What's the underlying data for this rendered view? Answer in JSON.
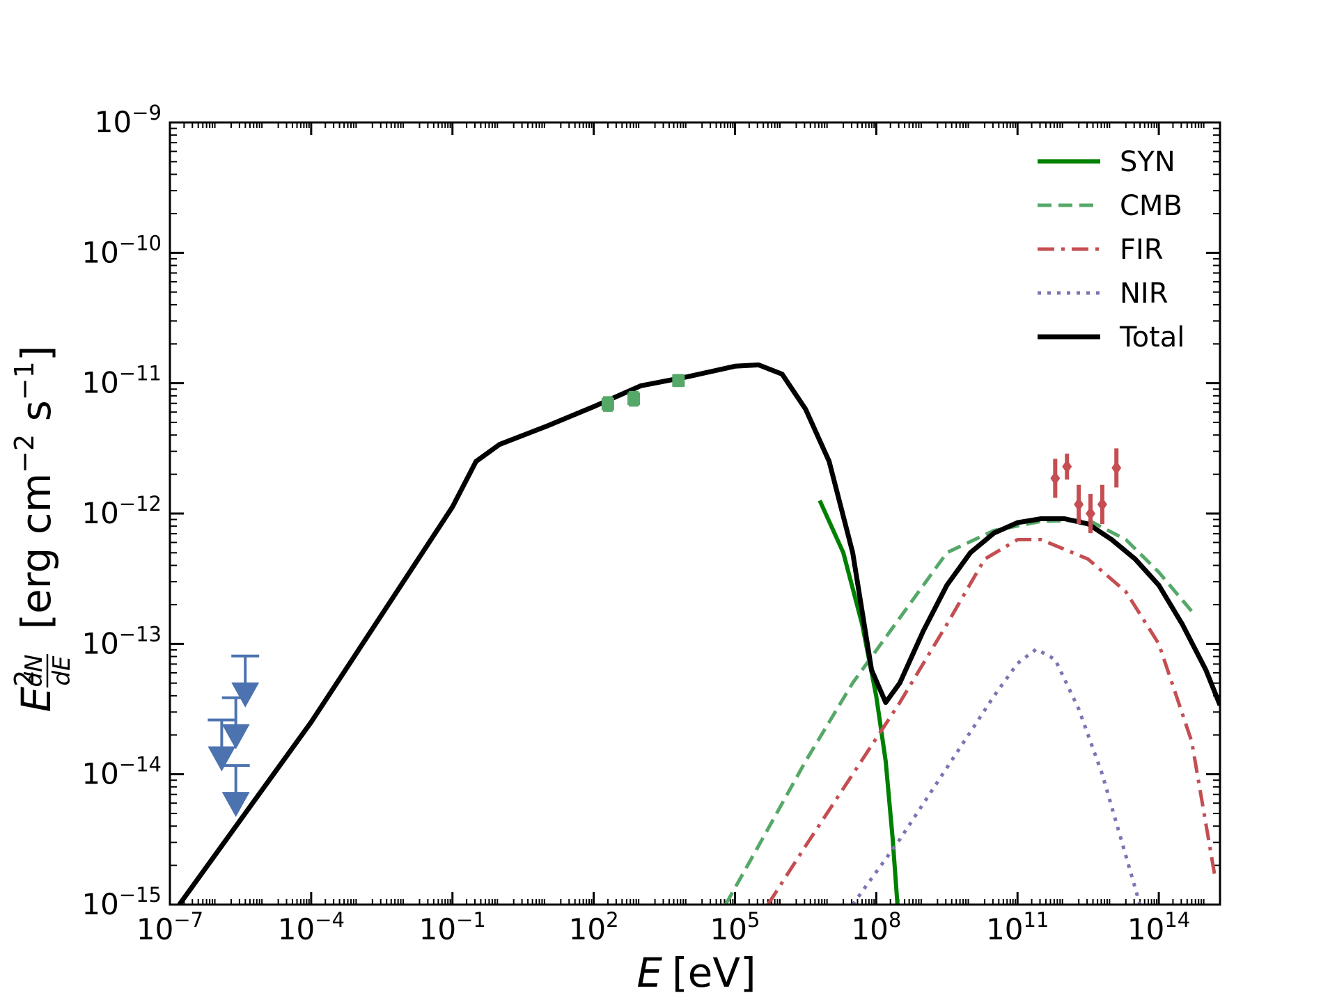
{
  "chart_data": {
    "type": "line",
    "title": "",
    "xlabel": "E [eV]",
    "xlabel_var": "E",
    "xlabel_unit": "[eV]",
    "ylabel": "E^2 dN/dE [erg cm^-2 s^-1]",
    "ylabel_parts": {
      "base": "E",
      "exp": "2",
      "num": "dN",
      "den": "dE",
      "unit_prefix": "[erg cm",
      "unit_exp1": "−2",
      "unit_mid": " s",
      "unit_exp2": "−1",
      "unit_suffix": "]"
    },
    "x_scale": "log",
    "y_scale": "log",
    "xlim_log10": [
      -7,
      15.3
    ],
    "ylim_log10": [
      -15,
      -9
    ],
    "x_ticks": [
      {
        "base": "10",
        "exp": "−7",
        "log": -7
      },
      {
        "base": "10",
        "exp": "−4",
        "log": -4
      },
      {
        "base": "10",
        "exp": "−1",
        "log": -1
      },
      {
        "base": "10",
        "exp": "2",
        "log": 2
      },
      {
        "base": "10",
        "exp": "5",
        "log": 5
      },
      {
        "base": "10",
        "exp": "8",
        "log": 8
      },
      {
        "base": "10",
        "exp": "11",
        "log": 11
      },
      {
        "base": "10",
        "exp": "14",
        "log": 14
      }
    ],
    "y_ticks": [
      {
        "base": "10",
        "exp": "−9",
        "log": -9
      },
      {
        "base": "10",
        "exp": "−10",
        "log": -10
      },
      {
        "base": "10",
        "exp": "−11",
        "log": -11
      },
      {
        "base": "10",
        "exp": "−12",
        "log": -12
      },
      {
        "base": "10",
        "exp": "−13",
        "log": -13
      },
      {
        "base": "10",
        "exp": "−14",
        "log": -14
      },
      {
        "base": "10",
        "exp": "−15",
        "log": -15
      }
    ],
    "legend_position": "upper-right",
    "series": [
      {
        "name": "SYN",
        "color": "#008000",
        "style": "solid",
        "width": 6,
        "points_log10": [
          [
            6.8,
            -11.9
          ],
          [
            7.3,
            -12.3
          ],
          [
            7.7,
            -12.85
          ],
          [
            8.0,
            -13.4
          ],
          [
            8.2,
            -13.9
          ],
          [
            8.35,
            -14.5
          ],
          [
            8.45,
            -15
          ]
        ]
      },
      {
        "name": "CMB",
        "color": "#55a868",
        "style": "dashed",
        "width": 5,
        "points_log10": [
          [
            4.8,
            -15
          ],
          [
            5.5,
            -14.55
          ],
          [
            6.5,
            -13.9
          ],
          [
            7.5,
            -13.3
          ],
          [
            8.5,
            -12.8
          ],
          [
            9.5,
            -12.3
          ],
          [
            10.5,
            -12.13
          ],
          [
            11.5,
            -12.06
          ],
          [
            12.5,
            -12.05
          ],
          [
            13.3,
            -12.2
          ],
          [
            14,
            -12.45
          ],
          [
            14.7,
            -12.75
          ]
        ]
      },
      {
        "name": "FIR",
        "color": "#c44e52",
        "style": "dashdot",
        "width": 5,
        "points_log10": [
          [
            5.7,
            -15
          ],
          [
            6.5,
            -14.55
          ],
          [
            7.5,
            -14.0
          ],
          [
            8.5,
            -13.45
          ],
          [
            9.5,
            -12.85
          ],
          [
            10.3,
            -12.35
          ],
          [
            11.0,
            -12.2
          ],
          [
            11.5,
            -12.2
          ],
          [
            12.5,
            -12.35
          ],
          [
            13.3,
            -12.6
          ],
          [
            14.0,
            -13.0
          ],
          [
            14.7,
            -13.75
          ],
          [
            15.2,
            -14.8
          ]
        ]
      },
      {
        "name": "NIR",
        "color": "#8172b2",
        "style": "dotted",
        "width": 5,
        "points_log10": [
          [
            7.5,
            -15
          ],
          [
            8.5,
            -14.5
          ],
          [
            9.5,
            -13.95
          ],
          [
            10.5,
            -13.4
          ],
          [
            11.0,
            -13.15
          ],
          [
            11.4,
            -13.04
          ],
          [
            11.8,
            -13.12
          ],
          [
            12.3,
            -13.5
          ],
          [
            12.8,
            -14.0
          ],
          [
            13.2,
            -14.5
          ],
          [
            13.6,
            -15
          ]
        ]
      },
      {
        "name": "Total",
        "color": "#000000",
        "style": "solid",
        "width": 7,
        "points_log10": [
          [
            -6.8,
            -15
          ],
          [
            -6,
            -14.6
          ],
          [
            -5,
            -14.1
          ],
          [
            -4,
            -13.6
          ],
          [
            -3,
            -13.05
          ],
          [
            -2,
            -12.5
          ],
          [
            -1,
            -11.95
          ],
          [
            -0.5,
            -11.6
          ],
          [
            0,
            -11.47
          ],
          [
            1,
            -11.33
          ],
          [
            2,
            -11.18
          ],
          [
            3,
            -11.02
          ],
          [
            4,
            -10.95
          ],
          [
            5,
            -10.87
          ],
          [
            5.5,
            -10.86
          ],
          [
            6,
            -10.93
          ],
          [
            6.5,
            -11.2
          ],
          [
            7.0,
            -11.6
          ],
          [
            7.5,
            -12.3
          ],
          [
            7.9,
            -13.2
          ],
          [
            8.2,
            -13.45
          ],
          [
            8.5,
            -13.3
          ],
          [
            9.0,
            -12.9
          ],
          [
            9.5,
            -12.55
          ],
          [
            10.0,
            -12.3
          ],
          [
            10.5,
            -12.15
          ],
          [
            11.0,
            -12.07
          ],
          [
            11.5,
            -12.04
          ],
          [
            12.0,
            -12.04
          ],
          [
            12.5,
            -12.08
          ],
          [
            13.0,
            -12.2
          ],
          [
            13.5,
            -12.35
          ],
          [
            14.0,
            -12.55
          ],
          [
            14.5,
            -12.85
          ],
          [
            15.0,
            -13.2
          ],
          [
            15.3,
            -13.47
          ]
        ]
      }
    ],
    "data_points": [
      {
        "group": "upper-limits",
        "color": "#4c72b0",
        "kind": "upper_limit",
        "points_log10": [
          [
            -5.9,
            -13.85
          ],
          [
            -5.6,
            -13.68
          ],
          [
            -5.4,
            -13.36
          ],
          [
            -5.6,
            -14.2
          ]
        ]
      },
      {
        "group": "x-ray",
        "color": "#55a868",
        "kind": "point",
        "points_log10": [
          [
            2.3,
            -11.16
          ],
          [
            2.85,
            -11.12
          ],
          [
            3.8,
            -10.98
          ]
        ],
        "err": [
          0.06,
          0.06,
          0.05
        ]
      },
      {
        "group": "gamma-ray",
        "color": "#c44e52",
        "kind": "point",
        "points_log10": [
          [
            11.8,
            -11.73
          ],
          [
            12.05,
            -11.64
          ],
          [
            12.3,
            -11.93
          ],
          [
            12.55,
            -12.0
          ],
          [
            12.8,
            -11.93
          ],
          [
            13.1,
            -11.65
          ]
        ],
        "err": [
          0.15,
          0.1,
          0.15,
          0.15,
          0.15,
          0.15
        ]
      }
    ]
  }
}
